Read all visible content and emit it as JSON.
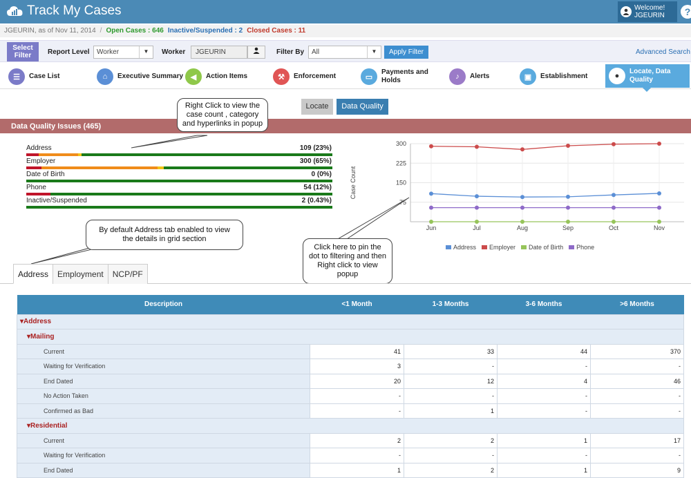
{
  "app": {
    "title": "Track My Cases",
    "welcome": "Welcome!",
    "user": "JGEURIN",
    "help_glyph": "?"
  },
  "status": {
    "worker_line": "JGEURIN, as of Nov 11, 2014",
    "separator": "/",
    "open": "Open Cases : 646",
    "inactive": "Inactive/Suspended : 2",
    "closed": "Closed Cases : 11"
  },
  "filter": {
    "select_filter": "Select Filter",
    "report_level_label": "Report Level",
    "report_level_value": "Worker",
    "worker_label": "Worker",
    "worker_value": "JGEURIN",
    "filter_by_label": "Filter By",
    "filter_by_value": "All",
    "apply": "Apply Filter",
    "advanced": "Advanced Search"
  },
  "tabs": [
    {
      "label": "Case List",
      "icon": "list-icon",
      "color": "#7b7bc8"
    },
    {
      "label": "Executive Summary",
      "icon": "home-icon",
      "color": "#5b8fd6"
    },
    {
      "label": "Action Items",
      "icon": "megaphone-icon",
      "color": "#8fc84a"
    },
    {
      "label": "Enforcement",
      "icon": "gavel-icon",
      "color": "#e05555"
    },
    {
      "label": "Payments and Holds",
      "icon": "money-icon",
      "color": "#5aaade"
    },
    {
      "label": "Alerts",
      "icon": "bell-icon",
      "color": "#9b7bc8"
    },
    {
      "label": "Establishment",
      "icon": "briefcase-icon",
      "color": "#5aaade"
    },
    {
      "label": "Locate, Data Quality",
      "icon": "map-pin-icon",
      "color": "#ffffff"
    }
  ],
  "subnav": {
    "locate": "Locate",
    "data_quality": "Data Quality"
  },
  "dq_header": "Data Quality Issues (465)",
  "bars": [
    {
      "name": "Address",
      "value": "109 (23%)",
      "segments": [
        0.04,
        0.13,
        0.01,
        0.82
      ]
    },
    {
      "name": "Employer",
      "value": "300 (65%)",
      "segments": [
        0.05,
        0.38,
        0.02,
        0.55
      ]
    },
    {
      "name": "Date of Birth",
      "value": "0 (0%)",
      "segments": [
        0,
        0,
        0,
        1
      ]
    },
    {
      "name": "Phone",
      "value": "54 (12%)",
      "segments": [
        0.08,
        0,
        0,
        0.92
      ]
    },
    {
      "name": "Inactive/Suspended",
      "value": "2 (0.43%)",
      "segments": [
        0,
        0,
        0,
        1
      ]
    }
  ],
  "bar_colors": [
    "#c0152a",
    "#f08c1a",
    "#f2c418",
    "#1a7a1a"
  ],
  "chart_data": {
    "type": "line",
    "categories": [
      "Jun",
      "Jul",
      "Aug",
      "Sep",
      "Oct",
      "Nov"
    ],
    "ylabel": "Case Count",
    "yticks": [
      75,
      150,
      225,
      300
    ],
    "ylim": [
      0,
      300
    ],
    "grid": true,
    "legend": "bottom",
    "series": [
      {
        "name": "Address",
        "color": "#5b8fd6",
        "values": [
          108,
          98,
          95,
          96,
          103,
          109
        ]
      },
      {
        "name": "Employer",
        "color": "#cc4b4b",
        "values": [
          290,
          288,
          278,
          292,
          298,
          300
        ]
      },
      {
        "name": "Date of Birth",
        "color": "#96c45a",
        "values": [
          0,
          0,
          0,
          0,
          0,
          0
        ]
      },
      {
        "name": "Phone",
        "color": "#8e6ac8",
        "values": [
          54,
          54,
          54,
          54,
          54,
          54
        ]
      }
    ]
  },
  "callouts": {
    "right_click": "Right Click to view the case count , category and hyperlinks in popup",
    "default_tab": "By default Address tab enabled to view the details in grid section",
    "pin_dot": "Click here to pin the dot to filtering and then Right click to view popup"
  },
  "lower_tabs": [
    "Address",
    "Employment",
    "NCP/PF"
  ],
  "grid": {
    "headers": [
      "Description",
      "<1 Month",
      "1-3 Months",
      "3-6 Months",
      ">6 Months"
    ],
    "group_address": "▾Address",
    "group_mailing": "▾Mailing",
    "group_residential": "▾Residential",
    "mailing_rows": [
      {
        "desc": "Current",
        "v": [
          "41",
          "33",
          "44",
          "370"
        ]
      },
      {
        "desc": "Waiting for Verification",
        "v": [
          "3",
          "-",
          "-",
          "-"
        ]
      },
      {
        "desc": "End Dated",
        "v": [
          "20",
          "12",
          "4",
          "46"
        ]
      },
      {
        "desc": "No Action Taken",
        "v": [
          "-",
          "-",
          "-",
          "-"
        ]
      },
      {
        "desc": "Confirmed as Bad",
        "v": [
          "-",
          "1",
          "-",
          "-"
        ]
      }
    ],
    "residential_rows": [
      {
        "desc": "Current",
        "v": [
          "2",
          "2",
          "1",
          "17"
        ]
      },
      {
        "desc": "Waiting for Verification",
        "v": [
          "-",
          "-",
          "-",
          "-"
        ]
      },
      {
        "desc": "End Dated",
        "v": [
          "1",
          "2",
          "1",
          "9"
        ]
      }
    ]
  }
}
